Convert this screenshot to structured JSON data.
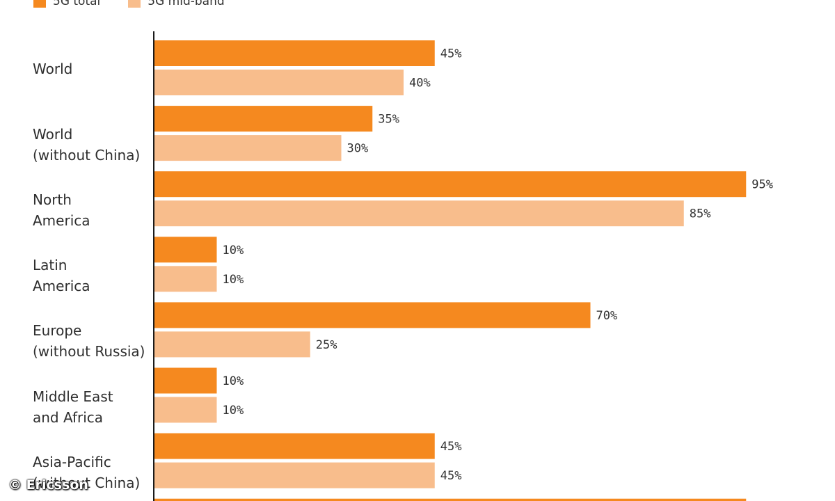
{
  "chart_data": {
    "type": "bar",
    "orientation": "horizontal",
    "categories": [
      "World",
      "World\n(without China)",
      "North\nAmerica",
      "Latin\nAmerica",
      "Europe\n(without Russia)",
      "Middle East\nand Africa",
      "Asia-Pacific\n(without China)"
    ],
    "series": [
      {
        "name": "5G total",
        "color": "#F5891F",
        "values": [
          45,
          35,
          95,
          10,
          70,
          10,
          45
        ]
      },
      {
        "name": "5G mid-band",
        "color": "#F8BD8C",
        "values": [
          40,
          30,
          85,
          10,
          25,
          10,
          45
        ]
      }
    ],
    "value_suffix": "%",
    "xlim": [
      0,
      100
    ],
    "grid": false,
    "legend_position": "top-left",
    "partial_next_bar_value": 95
  },
  "credit": "© Ericsson"
}
